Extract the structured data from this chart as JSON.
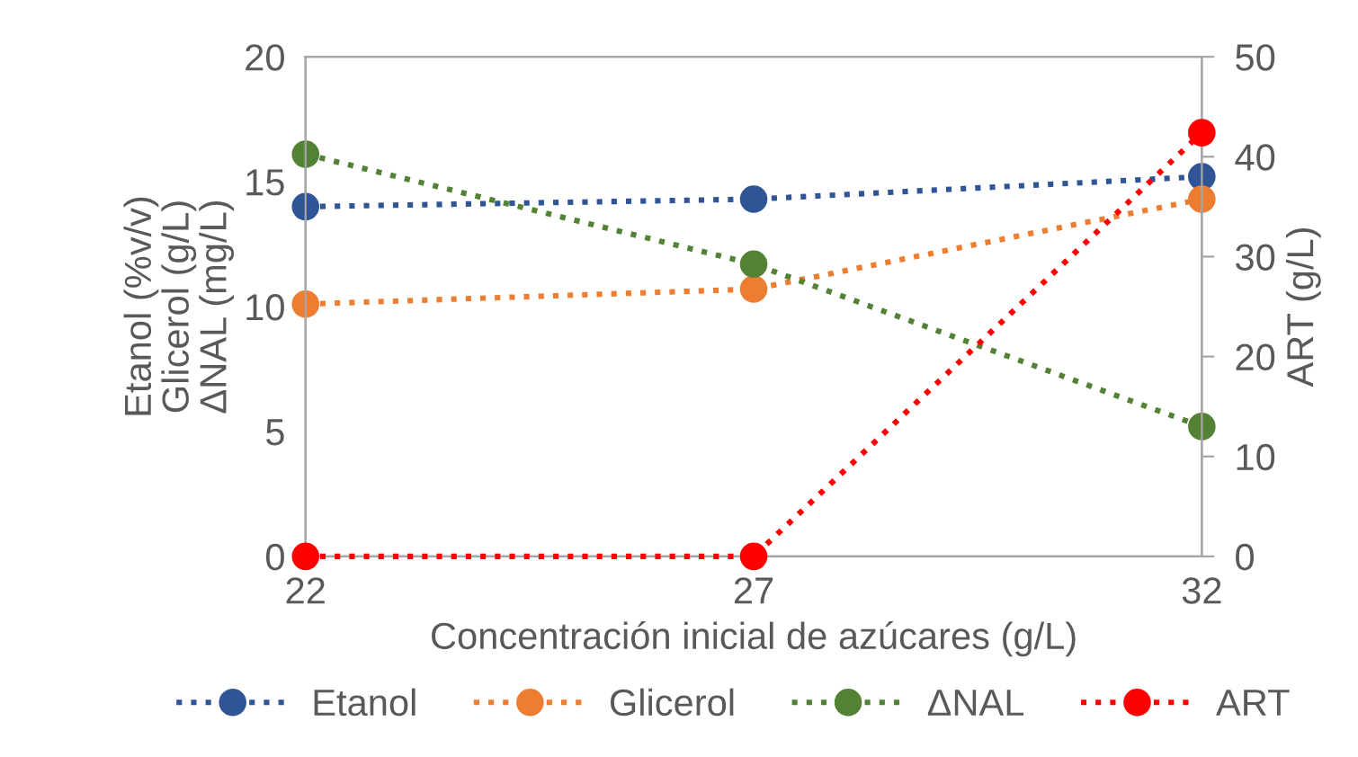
{
  "chart_data": {
    "type": "line",
    "xlabel": "Concentración inicial de azúcares (g/L)",
    "ylabel": "Etanol (%v/v)\nGlicerol (g/L)\nΔNAL (mg/L)",
    "y2label": "ART (g/L)",
    "x": [
      22,
      27,
      32
    ],
    "xlim": [
      22,
      32
    ],
    "xticks": [
      22,
      27,
      32
    ],
    "ylim": [
      0,
      20
    ],
    "yticks": [
      0,
      5,
      10,
      15,
      20
    ],
    "y2lim": [
      0,
      50
    ],
    "y2ticks": [
      0,
      10,
      20,
      30,
      40,
      50
    ],
    "marker": "circle",
    "line_style": "dotted",
    "grid": false,
    "legend": "bottom",
    "series": [
      {
        "name": "Etanol",
        "color": "#2f5597",
        "values": [
          14.0,
          14.3,
          15.2
        ]
      },
      {
        "name": "Glicerol",
        "color": "#ed7d31",
        "values": [
          10.1,
          10.7,
          14.3
        ]
      },
      {
        "name": "ΔNAL",
        "color": "#548235",
        "values": [
          16.1,
          11.7,
          5.2
        ]
      },
      {
        "name": "ART",
        "color": "#ff0000",
        "values": [
          0,
          0,
          42.4
        ],
        "axis": "y2"
      }
    ]
  }
}
